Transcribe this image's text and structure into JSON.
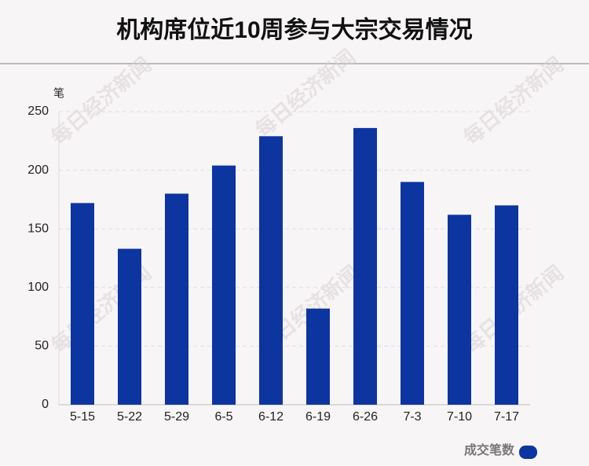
{
  "chart_data": {
    "type": "bar",
    "title": "机构席位近10周参与大宗交易情况",
    "y_label": "笔",
    "watermark": "每日经济新闻",
    "categories": [
      "5-15",
      "5-22",
      "5-29",
      "6-5",
      "6-12",
      "6-19",
      "6-26",
      "7-3",
      "7-10",
      "7-17"
    ],
    "series": [
      {
        "name": "成交笔数",
        "color": "#0c35a0",
        "values": [
          172,
          133,
          180,
          204,
          229,
          82,
          236,
          190,
          162,
          170
        ]
      }
    ],
    "ylim": [
      0,
      250
    ],
    "yticks": [
      0,
      50,
      100,
      150,
      200,
      250
    ],
    "grid": true,
    "legend": "bottom-right"
  }
}
